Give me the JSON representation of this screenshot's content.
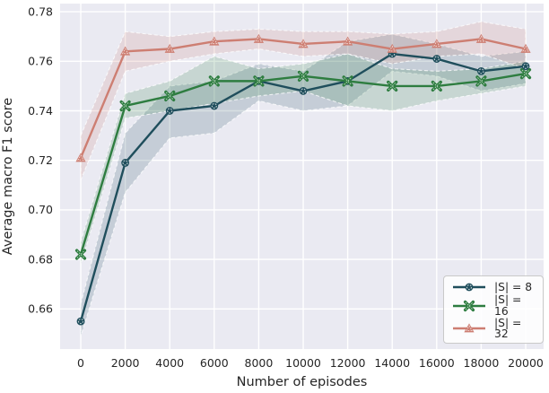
{
  "figure": {
    "background": "#ffffff",
    "plot_background": "#eaeaf2",
    "grid_color": "#ffffff",
    "text_color": "#262626",
    "legend_border_color": "#c9c9c9"
  },
  "chart_data": {
    "type": "line",
    "title": "",
    "xlabel": "Number of episodes",
    "ylabel": "Average macro F1 score",
    "grid": true,
    "legend_position": "lower right",
    "x": [
      0,
      2000,
      4000,
      6000,
      8000,
      10000,
      12000,
      14000,
      16000,
      18000,
      20000
    ],
    "xlim": [
      -928,
      20806
    ],
    "ylim": [
      0.6438,
      0.7833
    ],
    "xticks": {
      "values": [
        0,
        2000,
        4000,
        6000,
        8000,
        10000,
        12000,
        14000,
        16000,
        18000,
        20000
      ],
      "labels": [
        "0",
        "2000",
        "4000",
        "6000",
        "8000",
        "10000",
        "12000",
        "14000",
        "16000",
        "18000",
        "20000"
      ]
    },
    "yticks": {
      "values": [
        0.66,
        0.68,
        0.7,
        0.72,
        0.74,
        0.76,
        0.78
      ],
      "labels": [
        "0.66",
        "0.68",
        "0.70",
        "0.72",
        "0.74",
        "0.76",
        "0.78"
      ]
    },
    "series": [
      {
        "id": "s8",
        "name": "|S| = 8",
        "color": "#1f4e5c",
        "marker": "circle",
        "values": [
          0.655,
          0.719,
          0.74,
          0.742,
          0.752,
          0.748,
          0.752,
          0.763,
          0.761,
          0.756,
          0.758
        ],
        "band_hi": [
          0.662,
          0.731,
          0.75,
          0.752,
          0.759,
          0.756,
          0.768,
          0.771,
          0.767,
          0.762,
          0.764
        ],
        "band_lo": [
          0.649,
          0.707,
          0.729,
          0.731,
          0.744,
          0.74,
          0.742,
          0.756,
          0.754,
          0.748,
          0.751
        ]
      },
      {
        "id": "s16",
        "name": "|S| = 16",
        "color": "#2e7d40",
        "marker": "x",
        "values": [
          0.682,
          0.742,
          0.746,
          0.752,
          0.752,
          0.754,
          0.752,
          0.75,
          0.75,
          0.752,
          0.755
        ],
        "band_hi": [
          0.687,
          0.747,
          0.752,
          0.762,
          0.757,
          0.759,
          0.763,
          0.757,
          0.756,
          0.757,
          0.76
        ],
        "band_lo": [
          0.678,
          0.737,
          0.74,
          0.743,
          0.746,
          0.748,
          0.742,
          0.74,
          0.744,
          0.747,
          0.75
        ]
      },
      {
        "id": "s32",
        "name": "|S| = 32",
        "color": "#cd7e72",
        "marker": "triangle",
        "values": [
          0.721,
          0.764,
          0.765,
          0.768,
          0.769,
          0.767,
          0.768,
          0.765,
          0.767,
          0.769,
          0.765
        ],
        "band_hi": [
          0.73,
          0.772,
          0.77,
          0.772,
          0.773,
          0.772,
          0.772,
          0.771,
          0.772,
          0.776,
          0.773
        ],
        "band_lo": [
          0.712,
          0.756,
          0.76,
          0.763,
          0.765,
          0.762,
          0.763,
          0.759,
          0.762,
          0.763,
          0.757
        ]
      }
    ]
  }
}
